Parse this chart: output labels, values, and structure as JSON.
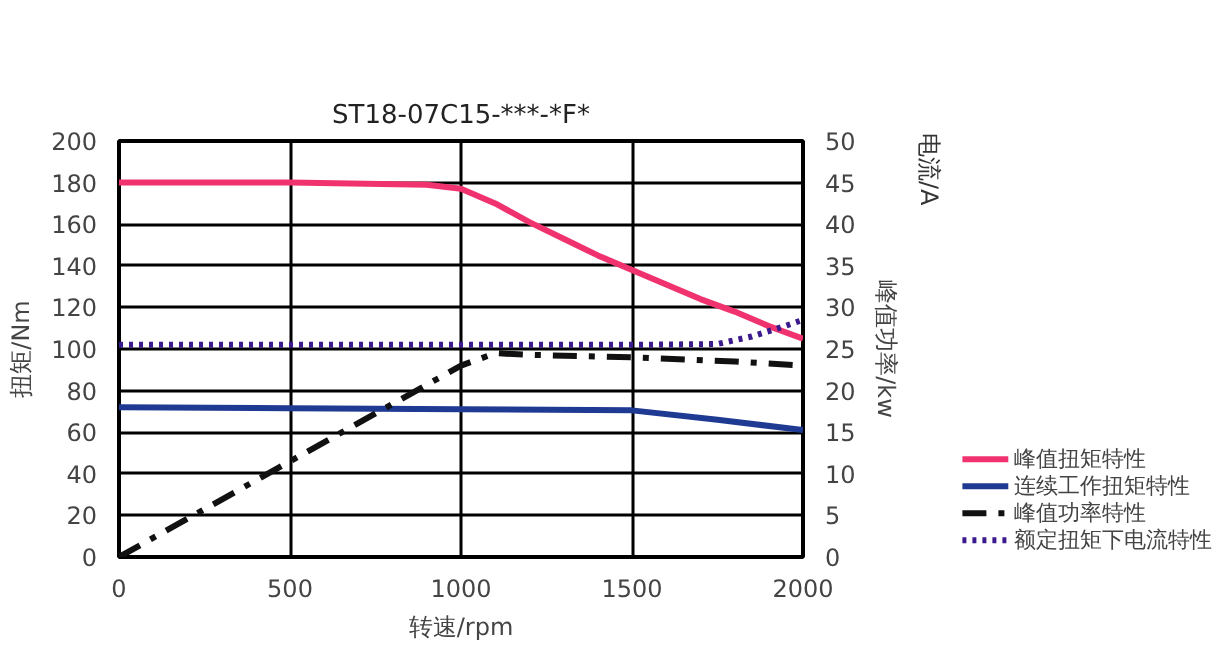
{
  "chart_data": {
    "type": "line",
    "title": "ST18-07C15-***-*F*",
    "xlabel": "转速/rpm",
    "ylabel": "扭矩/Nm",
    "y2label": "峰值功率/kw",
    "annotations": [
      "电流/A"
    ],
    "xlim": [
      0,
      2000
    ],
    "xticks": [
      0,
      500,
      1000,
      1500,
      2000
    ],
    "ylim": [
      0,
      200
    ],
    "yticks": [
      0,
      20,
      40,
      60,
      80,
      100,
      120,
      140,
      160,
      180,
      200
    ],
    "y2lim": [
      0,
      50
    ],
    "y2ticks": [
      0,
      5,
      10,
      15,
      20,
      25,
      30,
      35,
      40,
      45,
      50
    ],
    "grid": true,
    "legend": "bottom right",
    "series": [
      {
        "name": "峰值扭矩特性",
        "color": "#f0336f",
        "line_style": "solid",
        "x": [
          0,
          500,
          900,
          1000,
          1100,
          1200,
          1300,
          1400,
          1500,
          1600,
          1700,
          1800,
          1900,
          2000
        ],
        "values": [
          180,
          180,
          179,
          177,
          170,
          161,
          153,
          145,
          138,
          131,
          124,
          118,
          111,
          105
        ]
      },
      {
        "name": "连续工作扭矩特性",
        "color": "#1f3a93",
        "line_style": "solid",
        "x": [
          0,
          500,
          1000,
          1500,
          1750,
          2000
        ],
        "values": [
          72,
          71.5,
          71,
          70.5,
          66,
          61
        ]
      },
      {
        "name": "峰值功率特性",
        "color": "#111111",
        "line_style": "dashdot",
        "axis": "y2",
        "x": [
          0,
          500,
          1000,
          1100,
          1200,
          1500,
          1800,
          2000
        ],
        "values": [
          0,
          11.5,
          23,
          24.5,
          24.3,
          24,
          23.5,
          23
        ]
      },
      {
        "name": "额定扭矩下电流特性",
        "color": "#3a1a8c",
        "line_style": "dotted",
        "axis": "y2",
        "x": [
          0,
          500,
          1000,
          1500,
          1750,
          1850,
          1950,
          2000
        ],
        "values": [
          25.5,
          25.5,
          25.5,
          25.5,
          25.6,
          26.5,
          27.8,
          28.5
        ]
      }
    ]
  }
}
